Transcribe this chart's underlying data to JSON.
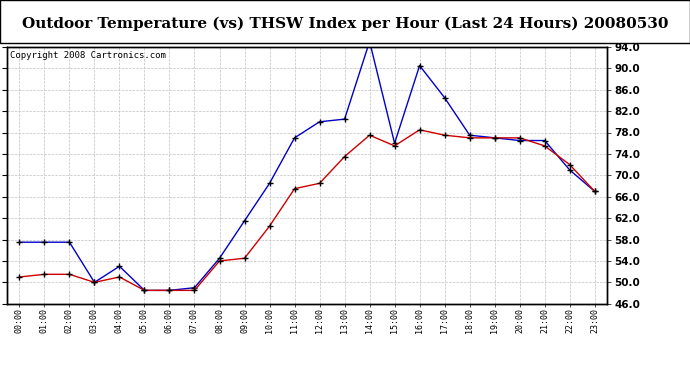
{
  "title": "Outdoor Temperature (vs) THSW Index per Hour (Last 24 Hours) 20080530",
  "copyright": "Copyright 2008 Cartronics.com",
  "hours": [
    "00:00",
    "01:00",
    "02:00",
    "03:00",
    "04:00",
    "05:00",
    "06:00",
    "07:00",
    "08:00",
    "09:00",
    "10:00",
    "11:00",
    "12:00",
    "13:00",
    "14:00",
    "15:00",
    "16:00",
    "17:00",
    "18:00",
    "19:00",
    "20:00",
    "21:00",
    "22:00",
    "23:00"
  ],
  "temp": [
    51.0,
    51.5,
    51.5,
    50.0,
    51.0,
    48.5,
    48.5,
    48.5,
    54.0,
    54.5,
    60.5,
    67.5,
    68.5,
    73.5,
    77.5,
    75.5,
    78.5,
    77.5,
    77.0,
    77.0,
    77.0,
    75.5,
    72.0,
    67.0
  ],
  "thsw": [
    57.5,
    57.5,
    57.5,
    50.0,
    53.0,
    48.5,
    48.5,
    49.0,
    54.5,
    61.5,
    68.5,
    77.0,
    80.0,
    80.5,
    95.0,
    76.0,
    90.5,
    84.5,
    77.5,
    77.0,
    76.5,
    76.5,
    71.0,
    67.0
  ],
  "ylim": [
    46.0,
    94.0
  ],
  "yticks": [
    46.0,
    50.0,
    54.0,
    58.0,
    62.0,
    66.0,
    70.0,
    74.0,
    78.0,
    82.0,
    86.0,
    90.0,
    94.0
  ],
  "temp_color": "#cc0000",
  "thsw_color": "#0000cc",
  "bg_color": "#ffffff",
  "grid_color": "#c0c0c0",
  "title_fontsize": 11,
  "copyright_fontsize": 6.5
}
